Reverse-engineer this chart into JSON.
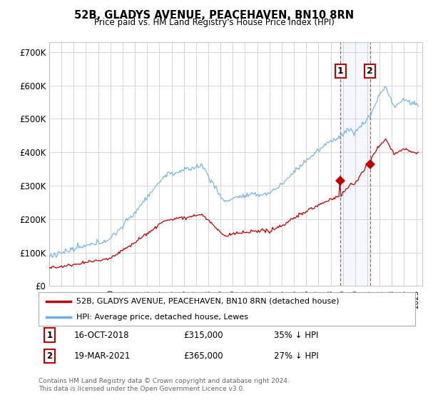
{
  "title": "52B, GLADYS AVENUE, PEACEHAVEN, BN10 8RN",
  "subtitle": "Price paid vs. HM Land Registry's House Price Index (HPI)",
  "legend_line1": "52B, GLADYS AVENUE, PEACEHAVEN, BN10 8RN (detached house)",
  "legend_line2": "HPI: Average price, detached house, Lewes",
  "transaction1_date": "16-OCT-2018",
  "transaction1_price": 315000,
  "transaction1_label": "35% ↓ HPI",
  "transaction2_date": "19-MAR-2021",
  "transaction2_price": 365000,
  "transaction2_label": "27% ↓ HPI",
  "footer": "Contains HM Land Registry data © Crown copyright and database right 2024.\nThis data is licensed under the Open Government Licence v3.0.",
  "hpi_color": "#6aaee8",
  "price_color": "#c00000",
  "marker1_x": 2018.79,
  "marker2_x": 2021.22,
  "ylim": [
    0,
    730000
  ],
  "xlim_start": 1995.0,
  "xlim_end": 2025.5,
  "yticks": [
    0,
    100000,
    200000,
    300000,
    400000,
    500000,
    600000,
    700000
  ],
  "ytick_labels": [
    "£0",
    "£100K",
    "£200K",
    "£300K",
    "£400K",
    "£500K",
    "£600K",
    "£700K"
  ]
}
